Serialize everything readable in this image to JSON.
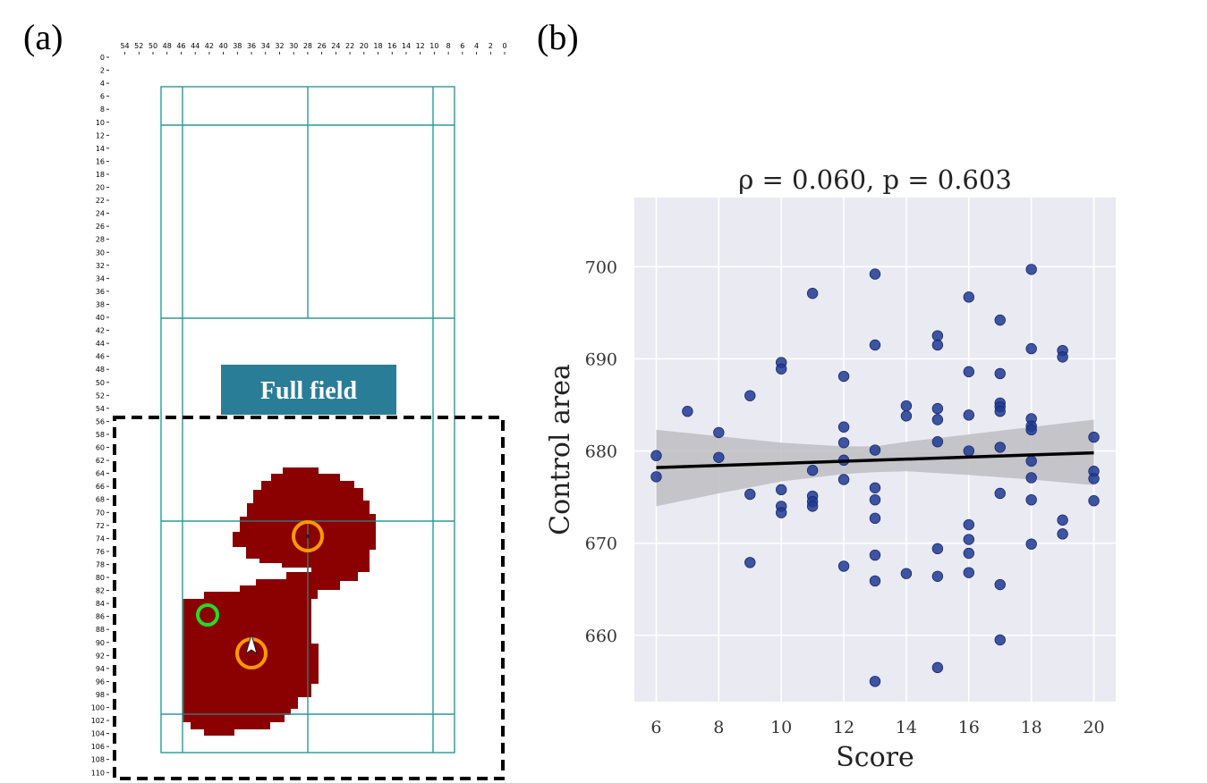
{
  "panels": {
    "a_label": "(a)",
    "b_label": "(b)"
  },
  "panel_a": {
    "badge_text": "Full field",
    "x_ticks": [
      54,
      52,
      50,
      48,
      46,
      44,
      42,
      40,
      38,
      36,
      34,
      32,
      30,
      28,
      26,
      24,
      22,
      20,
      18,
      16,
      14,
      12,
      10,
      8,
      6,
      4,
      2,
      0
    ],
    "y_ticks": [
      0,
      2,
      4,
      6,
      8,
      10,
      12,
      14,
      16,
      18,
      20,
      22,
      24,
      26,
      28,
      30,
      32,
      34,
      36,
      38,
      40,
      42,
      44,
      46,
      48,
      50,
      52,
      54,
      56,
      58,
      60,
      62,
      64,
      66,
      68,
      70,
      72,
      74,
      76,
      78,
      80,
      82,
      84,
      86,
      88,
      90,
      92,
      94,
      96,
      98,
      100,
      102,
      104,
      106,
      108,
      110
    ],
    "colors": {
      "field_lines": "#2a9a96",
      "control_region": "#8b0000",
      "badge_bg": "#2a7d97",
      "player_ring": "#ff9900",
      "shuttle_ring": "#22dd22"
    }
  },
  "chart_data": {
    "type": "scatter",
    "title": "ρ = 0.060, p = 0.603",
    "xlabel": "Score",
    "ylabel": "Control area",
    "xlim": [
      5.3,
      20.7
    ],
    "ylim": [
      652.8,
      707.5
    ],
    "x_ticks": [
      6,
      8,
      10,
      12,
      14,
      16,
      18,
      20
    ],
    "y_ticks": [
      660,
      670,
      680,
      690,
      700
    ],
    "grid": true,
    "background": "#eaeaf2",
    "point_color": "#1f3a93",
    "regression": {
      "x": [
        6,
        20
      ],
      "y": [
        678.2,
        679.8
      ]
    },
    "ci_band": {
      "x": [
        6,
        8,
        10,
        12,
        13,
        14,
        16,
        18,
        20
      ],
      "upper": [
        682.3,
        681.6,
        680.9,
        680.5,
        680.5,
        681.0,
        681.8,
        682.6,
        683.4
      ],
      "lower": [
        674.0,
        675.4,
        676.7,
        677.5,
        677.7,
        677.8,
        677.4,
        676.9,
        676.3
      ]
    },
    "points": [
      {
        "x": 6,
        "y": 679.5
      },
      {
        "x": 6,
        "y": 677.2
      },
      {
        "x": 7,
        "y": 684.3
      },
      {
        "x": 8,
        "y": 682.0
      },
      {
        "x": 8,
        "y": 679.3
      },
      {
        "x": 9,
        "y": 686.0
      },
      {
        "x": 9,
        "y": 675.3
      },
      {
        "x": 9,
        "y": 667.9
      },
      {
        "x": 10,
        "y": 689.6
      },
      {
        "x": 10,
        "y": 688.9
      },
      {
        "x": 10,
        "y": 675.8
      },
      {
        "x": 10,
        "y": 674.0
      },
      {
        "x": 10,
        "y": 673.3
      },
      {
        "x": 11,
        "y": 697.1
      },
      {
        "x": 11,
        "y": 677.9
      },
      {
        "x": 11,
        "y": 675.1
      },
      {
        "x": 11,
        "y": 674.5
      },
      {
        "x": 11,
        "y": 674.0
      },
      {
        "x": 12,
        "y": 688.1
      },
      {
        "x": 12,
        "y": 682.6
      },
      {
        "x": 12,
        "y": 680.9
      },
      {
        "x": 12,
        "y": 679.0
      },
      {
        "x": 12,
        "y": 676.9
      },
      {
        "x": 12,
        "y": 667.5
      },
      {
        "x": 13,
        "y": 699.2
      },
      {
        "x": 13,
        "y": 691.5
      },
      {
        "x": 13,
        "y": 680.1
      },
      {
        "x": 13,
        "y": 676.0
      },
      {
        "x": 13,
        "y": 674.7
      },
      {
        "x": 13,
        "y": 672.7
      },
      {
        "x": 13,
        "y": 668.7
      },
      {
        "x": 13,
        "y": 665.9
      },
      {
        "x": 13,
        "y": 655.0
      },
      {
        "x": 14,
        "y": 684.9
      },
      {
        "x": 14,
        "y": 683.8
      },
      {
        "x": 14,
        "y": 666.7
      },
      {
        "x": 15,
        "y": 692.5
      },
      {
        "x": 15,
        "y": 691.5
      },
      {
        "x": 15,
        "y": 684.6
      },
      {
        "x": 15,
        "y": 683.4
      },
      {
        "x": 15,
        "y": 681.0
      },
      {
        "x": 15,
        "y": 669.4
      },
      {
        "x": 15,
        "y": 666.4
      },
      {
        "x": 15,
        "y": 656.5
      },
      {
        "x": 16,
        "y": 696.7
      },
      {
        "x": 16,
        "y": 688.6
      },
      {
        "x": 16,
        "y": 683.9
      },
      {
        "x": 16,
        "y": 680.0
      },
      {
        "x": 16,
        "y": 672.0
      },
      {
        "x": 16,
        "y": 670.4
      },
      {
        "x": 16,
        "y": 668.9
      },
      {
        "x": 16,
        "y": 666.8
      },
      {
        "x": 17,
        "y": 694.2
      },
      {
        "x": 17,
        "y": 688.4
      },
      {
        "x": 17,
        "y": 685.2
      },
      {
        "x": 17,
        "y": 684.8
      },
      {
        "x": 17,
        "y": 684.3
      },
      {
        "x": 17,
        "y": 680.4
      },
      {
        "x": 17,
        "y": 675.4
      },
      {
        "x": 17,
        "y": 665.5
      },
      {
        "x": 17,
        "y": 659.5
      },
      {
        "x": 18,
        "y": 699.7
      },
      {
        "x": 18,
        "y": 691.1
      },
      {
        "x": 18,
        "y": 683.5
      },
      {
        "x": 18,
        "y": 682.7
      },
      {
        "x": 18,
        "y": 682.3
      },
      {
        "x": 18,
        "y": 678.9
      },
      {
        "x": 18,
        "y": 677.1
      },
      {
        "x": 18,
        "y": 674.7
      },
      {
        "x": 18,
        "y": 669.9
      },
      {
        "x": 19,
        "y": 690.9
      },
      {
        "x": 19,
        "y": 690.2
      },
      {
        "x": 19,
        "y": 672.5
      },
      {
        "x": 19,
        "y": 671.0
      },
      {
        "x": 20,
        "y": 681.5
      },
      {
        "x": 20,
        "y": 677.8
      },
      {
        "x": 20,
        "y": 677.0
      },
      {
        "x": 20,
        "y": 674.6
      }
    ]
  }
}
